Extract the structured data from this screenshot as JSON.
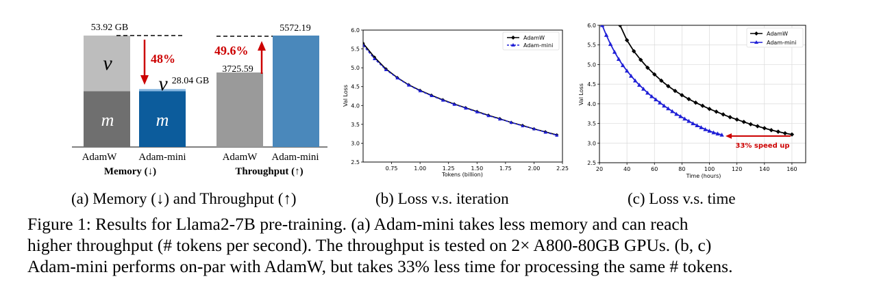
{
  "figure": {
    "caption_lines": [
      "Figure 1: Results for Llama2-7B pre-training. (a) Adam-mini takes less memory and can reach",
      "higher throughput (# tokens per second). The throughput is tested on 2× A800-80GB GPUs. (b, c)",
      "Adam-mini performs on-par with AdamW, but takes 33% less time for processing the same # tokens."
    ]
  },
  "chart_data": [
    {
      "type": "bar",
      "subcaption": "(a) Memory (↓) and Throughput (↑)",
      "groups": [
        {
          "name": "Memory (↓)",
          "categories": [
            "AdamW",
            "Adam-mini"
          ],
          "totals": [
            53.92,
            28.04
          ],
          "total_labels": [
            "53.92 GB",
            "28.04 GB"
          ],
          "segments": [
            {
              "name": "m",
              "values": [
                26.96,
                26.96
              ],
              "colors": [
                "#6f6f6f",
                "#0c5c9c"
              ]
            },
            {
              "name": "v",
              "values": [
                26.96,
                1.08
              ],
              "colors": [
                "#bdbdbd",
                "#86b6e0"
              ]
            }
          ],
          "reduction_label": "48%"
        },
        {
          "name": "Throughput (↑)",
          "categories": [
            "AdamW",
            "Adam-mini"
          ],
          "values": [
            3725.59,
            5572.19
          ],
          "value_labels": [
            "3725.59",
            "5572.19"
          ],
          "colors": [
            "#9a9a9a",
            "#4a88bb"
          ],
          "increase_label": "49.6%"
        }
      ],
      "accent_color": "#cc0000"
    },
    {
      "type": "line",
      "subcaption": "(b) Loss v.s. iteration",
      "xlabel": "Tokens (billion)",
      "ylabel": "Val Loss",
      "xlim": [
        0.5,
        2.25
      ],
      "ylim": [
        2.5,
        6.0
      ],
      "xticks": [
        "0.75",
        "1.00",
        "1.25",
        "1.50",
        "1.75",
        "2.00",
        "2.25"
      ],
      "yticks": [
        "2.5",
        "3.0",
        "3.5",
        "4.0",
        "4.5",
        "5.0",
        "5.5",
        "6.0"
      ],
      "legend": "top-right",
      "grid": false,
      "series": [
        {
          "name": "AdamW",
          "color": "#000000",
          "marker": "diamond",
          "x": [
            0.5,
            0.6,
            0.7,
            0.8,
            0.9,
            1.0,
            1.1,
            1.2,
            1.3,
            1.4,
            1.5,
            1.6,
            1.7,
            1.8,
            1.9,
            2.0,
            2.1,
            2.2
          ],
          "y": [
            5.65,
            5.28,
            4.97,
            4.74,
            4.55,
            4.4,
            4.27,
            4.15,
            4.04,
            3.94,
            3.84,
            3.74,
            3.65,
            3.55,
            3.47,
            3.38,
            3.3,
            3.22
          ]
        },
        {
          "name": "Adam-mini",
          "color": "#1f1fd6",
          "marker": "triangle",
          "x": [
            0.5,
            0.6,
            0.7,
            0.8,
            0.9,
            1.0,
            1.1,
            1.2,
            1.3,
            1.4,
            1.5,
            1.6,
            1.7,
            1.8,
            1.9,
            2.0,
            2.1,
            2.2
          ],
          "y": [
            5.6,
            5.24,
            4.95,
            4.73,
            4.54,
            4.39,
            4.26,
            4.14,
            4.03,
            3.93,
            3.83,
            3.73,
            3.64,
            3.55,
            3.46,
            3.38,
            3.29,
            3.21
          ]
        }
      ]
    },
    {
      "type": "line",
      "subcaption": "(c) Loss v.s. time",
      "xlabel": "Time (hours)",
      "ylabel": "Val Loss",
      "xlim": [
        20,
        170
      ],
      "ylim": [
        2.5,
        6.0
      ],
      "xticks": [
        "20",
        "40",
        "60",
        "80",
        "100",
        "120",
        "140",
        "160"
      ],
      "yticks": [
        "2.5",
        "3.0",
        "3.5",
        "4.0",
        "4.5",
        "5.0",
        "5.5",
        "6.0"
      ],
      "legend": "top-right",
      "grid": true,
      "annotation": "33% speed up",
      "series": [
        {
          "name": "AdamW",
          "color": "#000000",
          "marker": "diamond",
          "x": [
            35,
            40,
            45,
            50,
            55,
            60,
            65,
            70,
            75,
            80,
            85,
            90,
            95,
            100,
            105,
            110,
            115,
            120,
            125,
            130,
            135,
            140,
            145,
            150,
            155,
            160
          ],
          "y": [
            6.0,
            5.62,
            5.34,
            5.12,
            4.92,
            4.75,
            4.59,
            4.45,
            4.33,
            4.22,
            4.12,
            4.03,
            3.95,
            3.87,
            3.8,
            3.73,
            3.66,
            3.6,
            3.54,
            3.48,
            3.43,
            3.38,
            3.33,
            3.29,
            3.25,
            3.22
          ]
        },
        {
          "name": "Adam-mini",
          "color": "#1f1fd6",
          "marker": "triangle",
          "x": [
            22,
            25,
            28,
            31,
            34,
            37,
            40,
            43,
            46,
            49,
            52,
            55,
            58,
            61,
            64,
            67,
            70,
            73,
            76,
            79,
            82,
            85,
            88,
            91,
            94,
            97,
            100,
            103,
            106,
            109
          ],
          "y": [
            6.0,
            5.75,
            5.52,
            5.32,
            5.14,
            4.98,
            4.84,
            4.71,
            4.59,
            4.48,
            4.38,
            4.28,
            4.19,
            4.11,
            4.03,
            3.95,
            3.88,
            3.81,
            3.74,
            3.68,
            3.62,
            3.56,
            3.5,
            3.45,
            3.4,
            3.35,
            3.31,
            3.27,
            3.24,
            3.21
          ]
        }
      ]
    }
  ]
}
